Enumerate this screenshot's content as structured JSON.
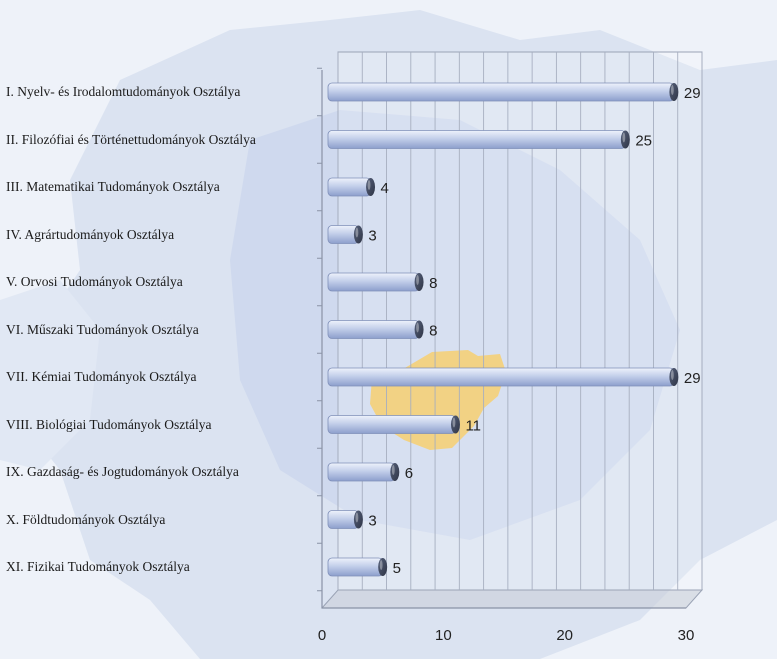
{
  "chart_data": {
    "type": "bar",
    "orientation": "horizontal",
    "title": "",
    "xlabel": "",
    "ylabel": "",
    "categories": [
      "I. Nyelv- és Irodalomtudományok Osztálya",
      "II. Filozófiai és Történettudományok Osztálya",
      "III. Matematikai Tudományok Osztálya",
      "IV. Agrártudományok Osztálya",
      "V. Orvosi Tudományok Osztálya",
      "VI. Műszaki Tudományok Osztálya",
      "VII. Kémiai Tudományok Osztálya",
      "VIII. Biológiai Tudományok Osztálya",
      "IX. Gazdaság- és Jogtudományok Osztálya",
      "X. Földtudományok Osztálya",
      "XI. Fizikai Tudományok Osztálya"
    ],
    "values": [
      29,
      25,
      4,
      3,
      8,
      8,
      29,
      11,
      6,
      3,
      5
    ],
    "xlim": [
      0,
      30
    ],
    "ticks": [
      0,
      10,
      20,
      30
    ],
    "grid": true,
    "bar_color": "#b8c6e6",
    "background_map_colors": {
      "land": "#dbe3f1",
      "region": "#cbd6ec",
      "highlight": "#f0c86a"
    }
  }
}
